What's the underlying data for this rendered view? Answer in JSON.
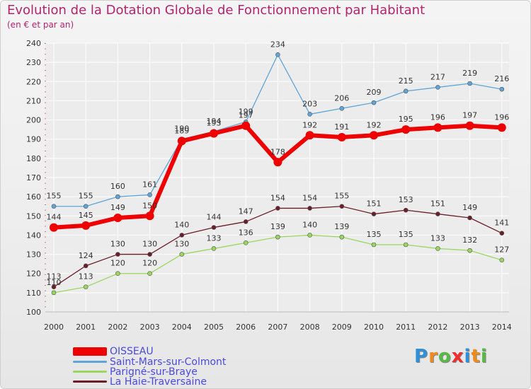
{
  "header": {
    "title": "Evolution de la Dotation Globale de Fonctionnement par Habitant",
    "subtitle": "(en € et par an)"
  },
  "logo": {
    "text": "Proxiti"
  },
  "colors": {
    "title": "#b4236e",
    "legend_text": "#4a4adf",
    "grid": "#ffffff",
    "axis_text": "#333333"
  },
  "chart_data": {
    "type": "line",
    "title": "Evolution de la Dotation Globale de Fonctionnement par Habitant",
    "subtitle": "(en € et par an)",
    "xlabel": "",
    "ylabel": "",
    "x": [
      2000,
      2001,
      2002,
      2003,
      2004,
      2005,
      2006,
      2007,
      2008,
      2009,
      2010,
      2011,
      2012,
      2013,
      2014
    ],
    "ylim": [
      100,
      240
    ],
    "yticks": [
      100,
      110,
      120,
      130,
      140,
      150,
      160,
      170,
      180,
      190,
      200,
      210,
      220,
      230,
      240
    ],
    "grid": true,
    "legend": "bottom-left",
    "series": [
      {
        "name": "OISSEAU",
        "color": "#ee0000",
        "labels": true,
        "values": [
          144,
          145,
          149,
          150,
          189,
          193,
          197,
          178,
          192,
          191,
          192,
          195,
          196,
          197,
          196
        ]
      },
      {
        "name": "Saint-Mars-sur-Colmont",
        "color": "#5fa5d8",
        "labels": true,
        "values": [
          155,
          155,
          160,
          161,
          190,
          194,
          199,
          234,
          203,
          206,
          209,
          215,
          217,
          219,
          216
        ]
      },
      {
        "name": "Parigné-sur-Braye",
        "color": "#9ad760",
        "labels": true,
        "values": [
          110,
          113,
          120,
          120,
          130,
          133,
          136,
          139,
          140,
          139,
          135,
          135,
          133,
          132,
          127
        ]
      },
      {
        "name": "La Haie-Traversaine",
        "color": "#6b1e28",
        "labels": true,
        "values": [
          113,
          124,
          130,
          130,
          140,
          144,
          147,
          154,
          154,
          155,
          151,
          153,
          151,
          149,
          141
        ]
      }
    ]
  }
}
